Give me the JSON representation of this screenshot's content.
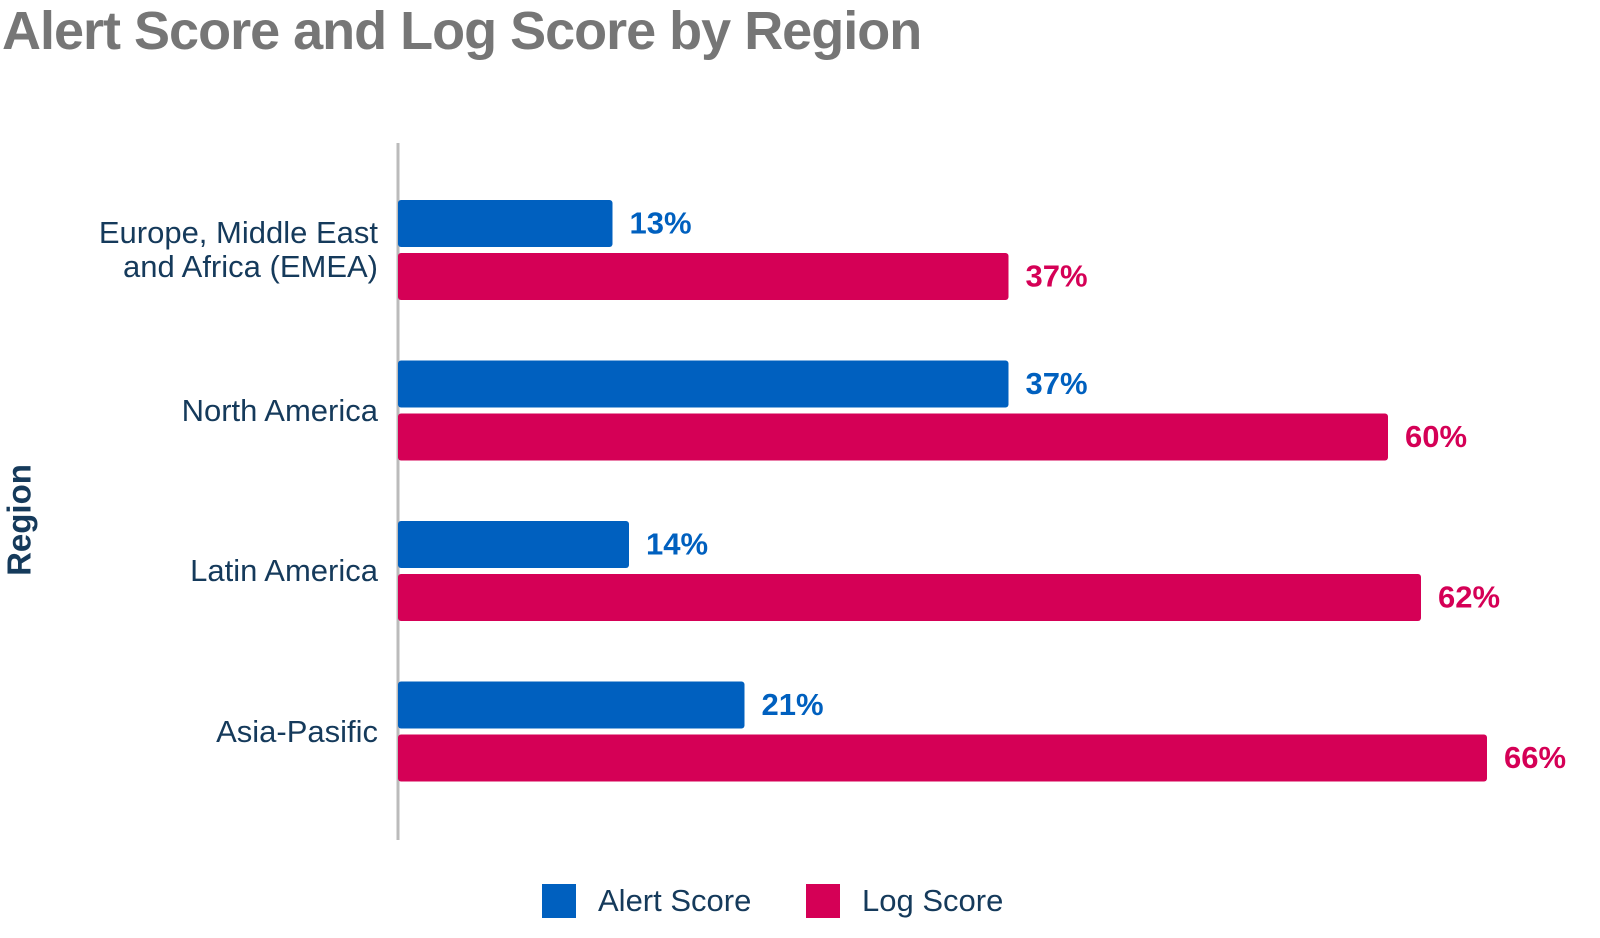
{
  "chart_data": {
    "type": "bar",
    "orientation": "horizontal",
    "title": "Alert Score and Log Score by Region",
    "y_label": "Region",
    "categories": [
      "Europe, Middle East and Africa (EMEA)",
      "North America",
      "Latin America",
      "Asia-Pasific"
    ],
    "series": [
      {
        "name": "Alert Score",
        "color": "#0060bf",
        "values": [
          13,
          37,
          14,
          21
        ],
        "value_labels": [
          "13%",
          "37%",
          "14%",
          "21%"
        ]
      },
      {
        "name": "Log Score",
        "color": "#d50056",
        "values": [
          37,
          60,
          62,
          66
        ],
        "value_labels": [
          "37%",
          "60%",
          "62%",
          "66%"
        ]
      }
    ],
    "legend": "bottom"
  }
}
